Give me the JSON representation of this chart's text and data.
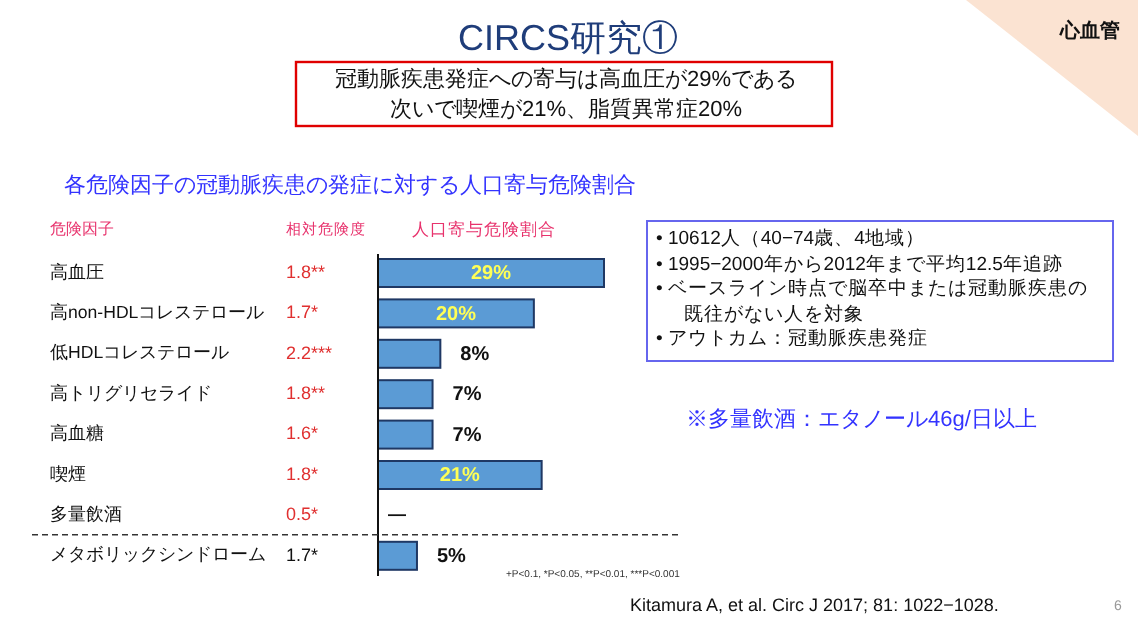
{
  "chart_data": {
    "type": "bar",
    "orientation": "horizontal",
    "title": "CIRCS研究①",
    "subtitle": "冠動脈疾患発症への寄与は高血圧が29%である",
    "ylabel": "危険因子",
    "xlabel": "人口寄与危険割合",
    "categories": [
      "高血圧",
      "高non-HDLコレステロール",
      "低HDLコレステロール",
      "高トリグリセライド",
      "高血糖",
      "喫煙",
      "多量飲酒",
      "メタボリックシンドローム"
    ],
    "values": [
      29,
      20,
      8,
      7,
      7,
      21,
      null,
      5
    ],
    "value_labels": [
      "29%",
      "20%",
      "8%",
      "7%",
      "7%",
      "21%",
      "—",
      "5%"
    ],
    "color": "#5b9bd5",
    "annotations": [
      "各危険因子の冠動脈疾患の発症に対する人口寄与危険割合",
      "次いで喫煙が21%、脂質異常症20%",
      "相対危険度",
      "1.8**",
      "1.7*",
      "2.2***",
      "1.8**",
      "1.6*",
      "1.8*",
      "0.5*",
      "1.7*",
      "• 10612人（40−74歳、4地域）",
      "• 1995−2000年から2012年まで平均12.5年追跡",
      "• ベースライン時点で脳卒中または冠動脈疾患の既往がない人を対象",
      "• アウトカム：冠動脈疾患発症",
      "※多量飲酒：エタノール46g/日以上",
      "+P<0.1, *P<0.05, **P<0.01, ***P<0.001",
      "Kitamura A, et al. Circ J 2017; 81: 1022−1028.",
      "6",
      "心血管"
    ]
  }
}
